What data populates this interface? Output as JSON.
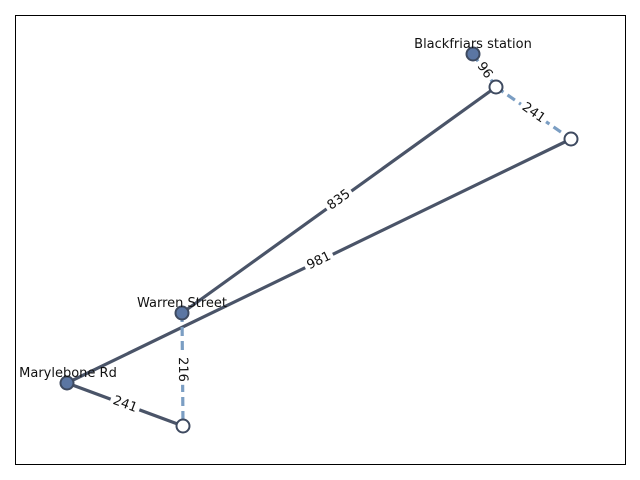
{
  "colors": {
    "solid_edge": "#4a5468",
    "dashed_edge": "#7b9ec3",
    "filled_node": "#5b76a3",
    "hollow_node": "#ffffff",
    "node_stroke": "#3e4a60"
  },
  "nodes": [
    {
      "id": "blackfriars",
      "label": "Blackfriars station",
      "filled": true
    },
    {
      "id": "n2",
      "label": "",
      "filled": false
    },
    {
      "id": "n3",
      "label": "",
      "filled": false
    },
    {
      "id": "warren",
      "label": "Warren Street",
      "filled": true
    },
    {
      "id": "marylebone",
      "label": "Marylebone Rd",
      "filled": true
    },
    {
      "id": "n6",
      "label": "",
      "filled": false
    }
  ],
  "edges": [
    {
      "from": "blackfriars",
      "to": "n2",
      "label": "96",
      "style": "dashed"
    },
    {
      "from": "n2",
      "to": "n3",
      "label": "241",
      "style": "dashed"
    },
    {
      "from": "n2",
      "to": "warren",
      "label": "835",
      "style": "solid"
    },
    {
      "from": "n3",
      "to": "marylebone",
      "label": "981",
      "style": "solid"
    },
    {
      "from": "warren",
      "to": "n6",
      "label": "216",
      "style": "dashed"
    },
    {
      "from": "marylebone",
      "to": "n6",
      "label": "241",
      "style": "solid"
    }
  ]
}
